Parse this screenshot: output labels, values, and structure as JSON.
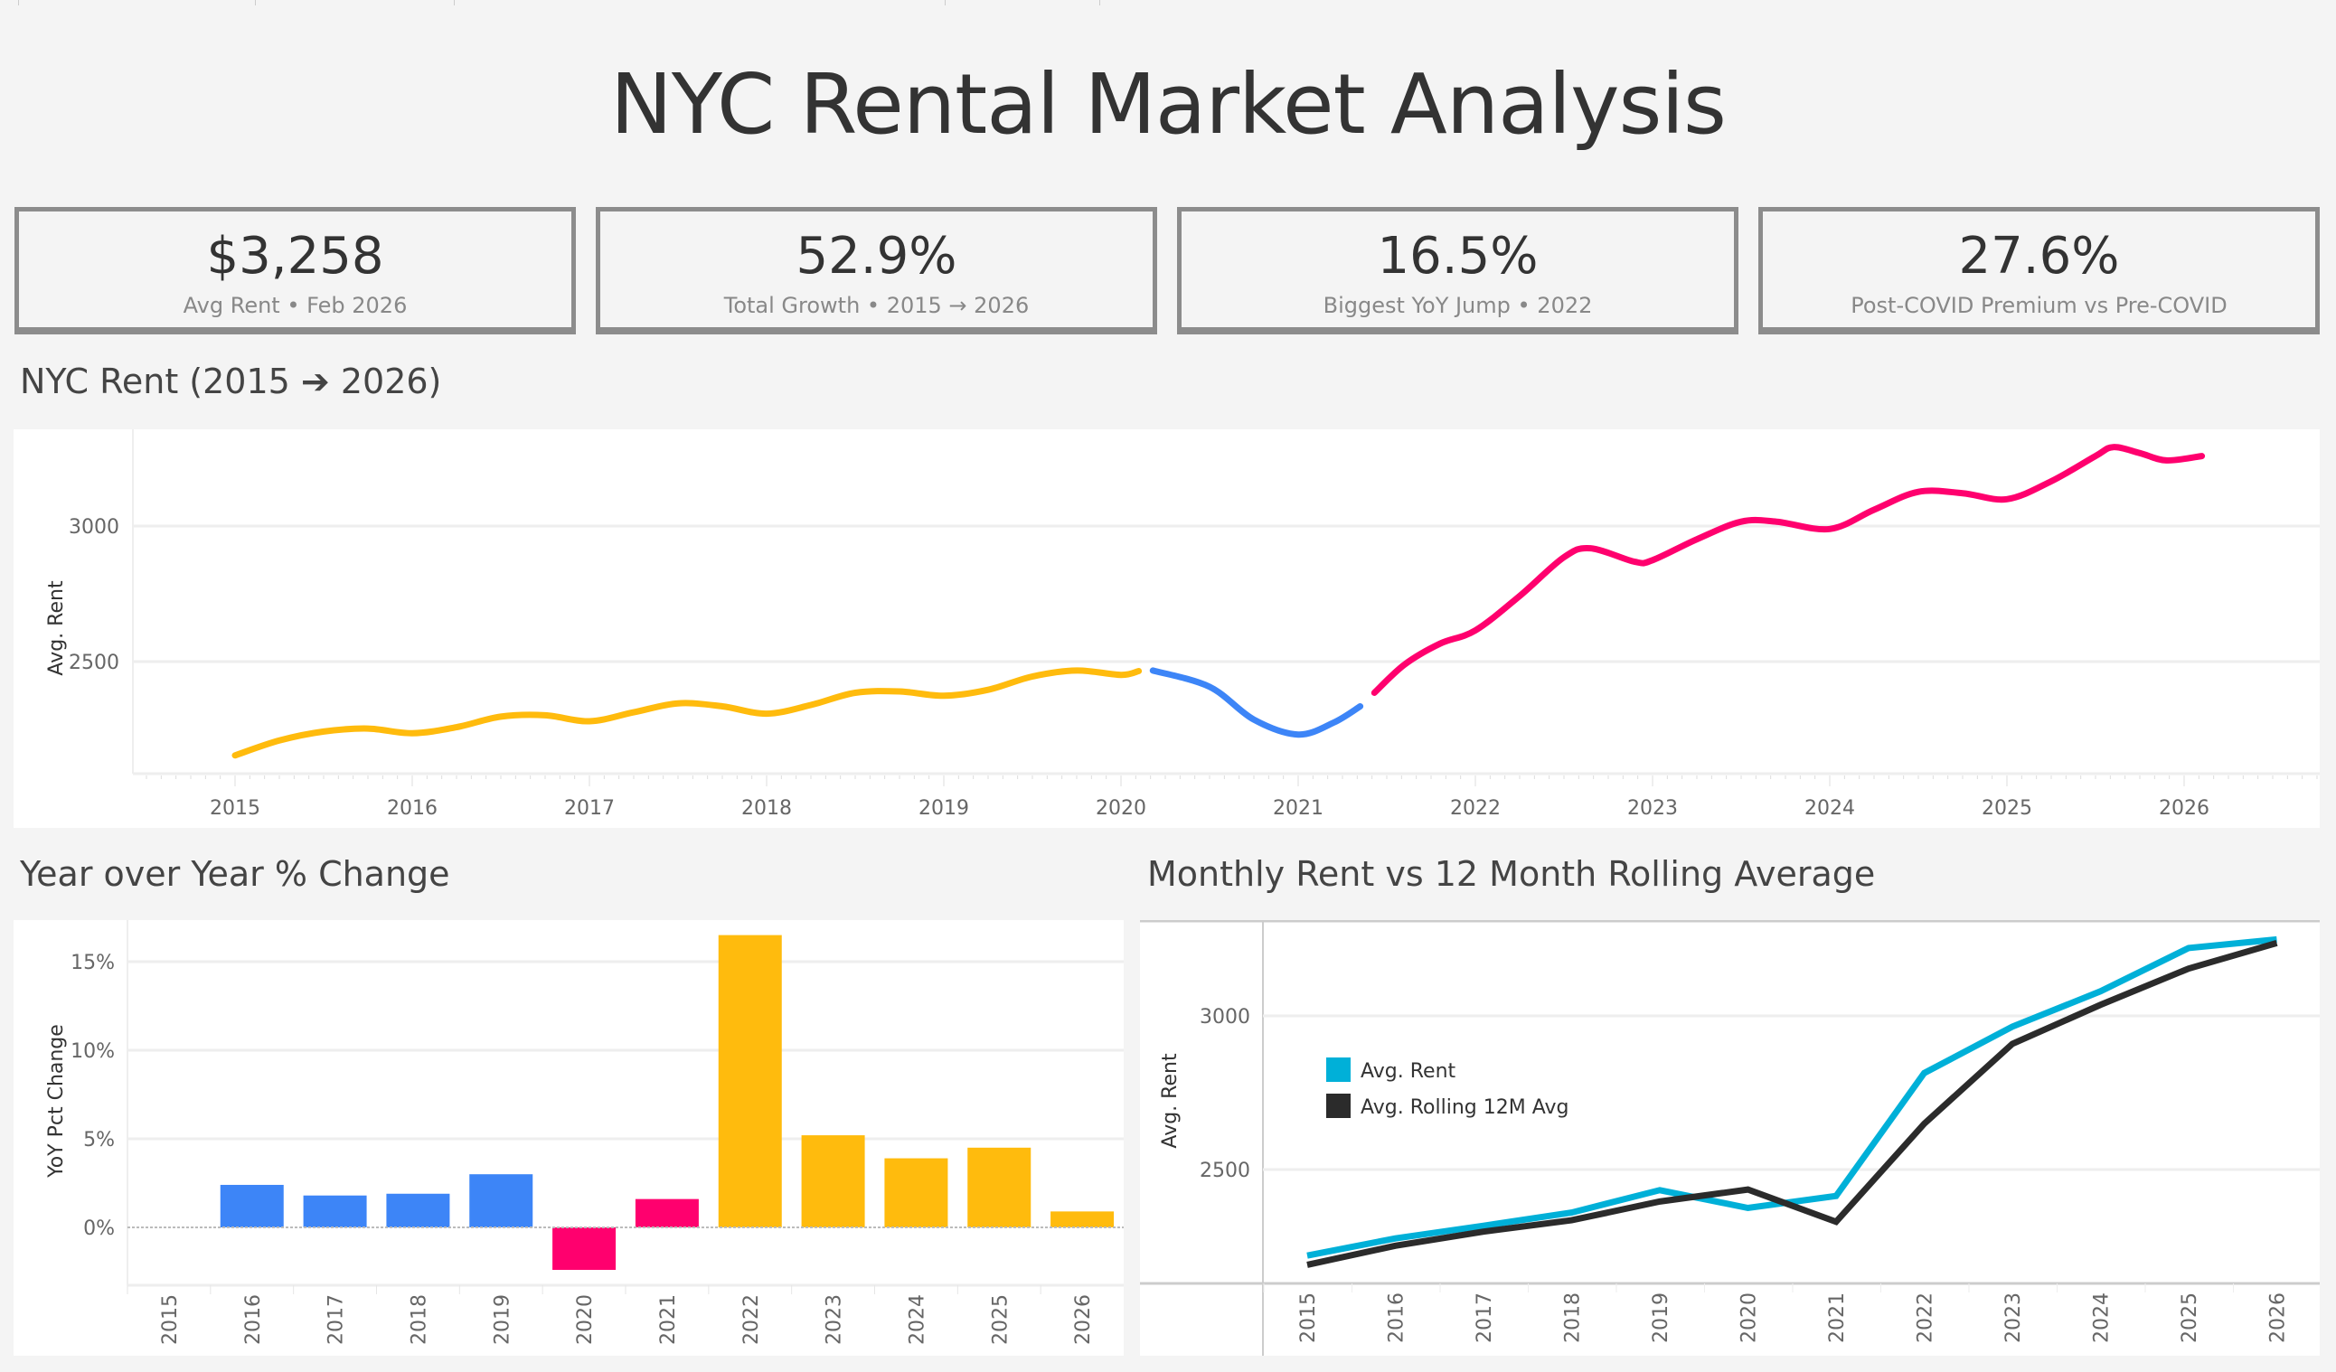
{
  "title": "NYC Rental Market Analysis",
  "kpis": [
    {
      "value": "$3,258",
      "label": "Avg Rent • Feb 2026"
    },
    {
      "value": "52.9%",
      "label": "Total Growth • 2015 → 2026"
    },
    {
      "value": "16.5%",
      "label": "Biggest YoY Jump • 2022"
    },
    {
      "value": "27.6%",
      "label": "Post-COVID Premium vs Pre-COVID"
    }
  ],
  "sections": {
    "main": "NYC Rent (2015 ➔ 2026)",
    "yoy": "Year over Year % Change",
    "rolling": "Monthly Rent vs 12 Month Rolling Average"
  },
  "chart_data": [
    {
      "type": "line",
      "ylabel": "Avg. Rent",
      "xlabel": "",
      "xticks": [
        "2015",
        "2016",
        "2017",
        "2018",
        "2019",
        "2020",
        "2021",
        "2022",
        "2023",
        "2024",
        "2025",
        "2026"
      ],
      "yticks": [
        "2500",
        "3000"
      ],
      "ylim": [
        2087,
        3357
      ],
      "grid": true,
      "segments": [
        {
          "color": "#ffbb0d",
          "points": [
            [
              2015.0,
              2154
            ],
            [
              2015.25,
              2209
            ],
            [
              2015.5,
              2242
            ],
            [
              2015.75,
              2253
            ],
            [
              2016.0,
              2236
            ],
            [
              2016.25,
              2258
            ],
            [
              2016.5,
              2297
            ],
            [
              2016.75,
              2302
            ],
            [
              2017.0,
              2280
            ],
            [
              2017.25,
              2313
            ],
            [
              2017.5,
              2346
            ],
            [
              2017.75,
              2335
            ],
            [
              2018.0,
              2308
            ],
            [
              2018.25,
              2340
            ],
            [
              2018.5,
              2385
            ],
            [
              2018.75,
              2390
            ],
            [
              2019.0,
              2374
            ],
            [
              2019.25,
              2396
            ],
            [
              2019.5,
              2445
            ],
            [
              2019.75,
              2467
            ],
            [
              2020.0,
              2451
            ],
            [
              2020.1,
              2465
            ]
          ]
        },
        {
          "color": "#3d85f7",
          "points": [
            [
              2020.18,
              2467
            ],
            [
              2020.5,
              2407
            ],
            [
              2020.75,
              2286
            ],
            [
              2021.0,
              2231
            ],
            [
              2021.2,
              2275
            ],
            [
              2021.35,
              2335
            ]
          ]
        },
        {
          "color": "#ff006e",
          "points": [
            [
              2021.43,
              2385
            ],
            [
              2021.6,
              2489
            ],
            [
              2021.8,
              2566
            ],
            [
              2022.0,
              2615
            ],
            [
              2022.25,
              2742
            ],
            [
              2022.5,
              2885
            ],
            [
              2022.65,
              2918
            ],
            [
              2022.9,
              2868
            ],
            [
              2023.0,
              2874
            ],
            [
              2023.25,
              2951
            ],
            [
              2023.5,
              3016
            ],
            [
              2023.7,
              3016
            ],
            [
              2024.0,
              2989
            ],
            [
              2024.25,
              3060
            ],
            [
              2024.5,
              3126
            ],
            [
              2024.75,
              3121
            ],
            [
              2025.0,
              3099
            ],
            [
              2025.25,
              3165
            ],
            [
              2025.5,
              3258
            ],
            [
              2025.6,
              3291
            ],
            [
              2025.75,
              3269
            ],
            [
              2025.9,
              3242
            ],
            [
              2026.1,
              3258
            ]
          ]
        }
      ]
    },
    {
      "type": "bar",
      "ylabel": "YoY Pct Change",
      "xlabel": "",
      "categories": [
        "2015",
        "2016",
        "2017",
        "2018",
        "2019",
        "2020",
        "2021",
        "2022",
        "2023",
        "2024",
        "2025",
        "2026"
      ],
      "values": [
        null,
        2.4,
        1.8,
        1.9,
        3.0,
        -2.4,
        1.6,
        16.5,
        5.2,
        3.9,
        4.5,
        0.9
      ],
      "colors": [
        null,
        "#3d85f7",
        "#3d85f7",
        "#3d85f7",
        "#3d85f7",
        "#ff006e",
        "#ff006e",
        "#ffbb0d",
        "#ffbb0d",
        "#ffbb0d",
        "#ffbb0d",
        "#ffbb0d"
      ],
      "yticks": [
        "0%",
        "5%",
        "10%",
        "15%"
      ],
      "ylim": [
        -3.3,
        17.4
      ],
      "grid": true
    },
    {
      "type": "line",
      "ylabel": "Avg. Rent",
      "xlabel": "",
      "categories": [
        "2015",
        "2016",
        "2017",
        "2018",
        "2019",
        "2020",
        "2021",
        "2022",
        "2023",
        "2024",
        "2025",
        "2026"
      ],
      "yticks": [
        "2500",
        "3000"
      ],
      "ylim": [
        2120,
        3310
      ],
      "legend": "left",
      "grid": true,
      "series": [
        {
          "name": "Avg. Rent",
          "color": "#00b0d8",
          "values": [
            2220,
            2276,
            2317,
            2360,
            2433,
            2375,
            2414,
            2814,
            2965,
            3080,
            3221,
            3249
          ]
        },
        {
          "name": "Avg. Rolling 12M Avg",
          "color": "#2b2b2b",
          "values": [
            2190,
            2252,
            2298,
            2335,
            2396,
            2435,
            2330,
            2649,
            2909,
            3036,
            3154,
            3237
          ]
        }
      ]
    }
  ]
}
